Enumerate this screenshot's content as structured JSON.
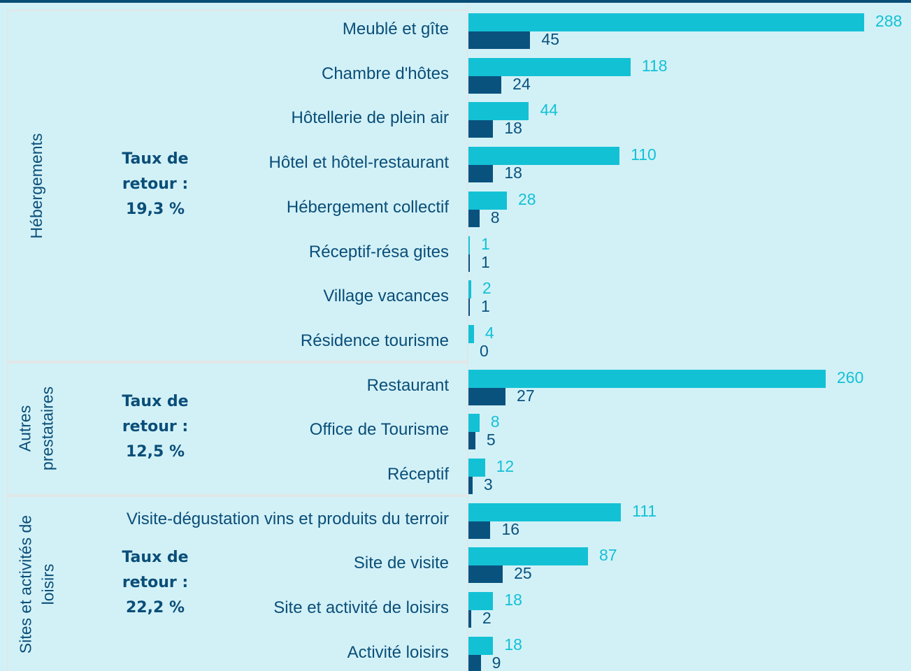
{
  "chart_data": {
    "type": "bar",
    "orientation": "horizontal",
    "colors": [
      "#13c1d5",
      "#0a527e"
    ],
    "groups": [
      {
        "name": "Hébergements",
        "annotation": "Taux de retour : 19,3 %",
        "categories": [
          "Meublé et gîte",
          "Chambre d'hôtes",
          "Hôtellerie de plein air",
          "Hôtel et hôtel-restaurant",
          "Hébergement collectif",
          "Réceptif-résa gites",
          "Village vacances",
          "Résidence tourisme"
        ],
        "series": [
          {
            "values": [
              288,
              118,
              44,
              110,
              28,
              1,
              2,
              4
            ]
          },
          {
            "values": [
              45,
              24,
              18,
              18,
              8,
              1,
              1,
              0
            ]
          }
        ]
      },
      {
        "name": "Autres prestataires",
        "annotation": "Taux de retour : 12,5 %",
        "categories": [
          "Restaurant",
          "Office de Tourisme",
          "Réceptif"
        ],
        "series": [
          {
            "values": [
              260,
              8,
              12
            ]
          },
          {
            "values": [
              27,
              5,
              3
            ]
          }
        ]
      },
      {
        "name": "Sites et activités de loisirs",
        "annotation": "Taux de retour : 22,2 %",
        "categories": [
          "Visite-dégustation vins et produits du terroir",
          "Site de visite",
          "Site et activité de loisirs",
          "Activité loisirs"
        ],
        "series": [
          {
            "values": [
              111,
              87,
              18,
              18
            ]
          },
          {
            "values": [
              16,
              25,
              2,
              9
            ]
          }
        ]
      }
    ]
  }
}
